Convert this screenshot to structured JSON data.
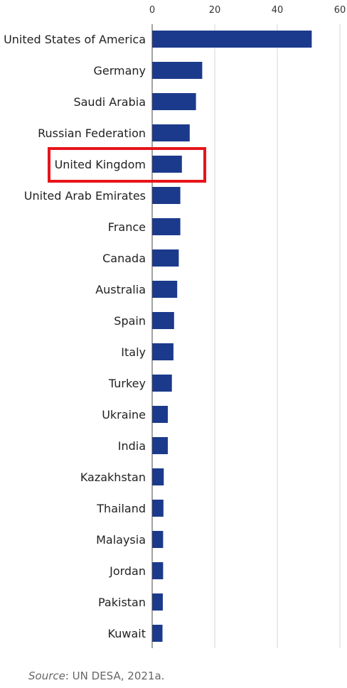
{
  "chart_data": {
    "type": "bar",
    "orientation": "horizontal",
    "categories": [
      "United States of America",
      "Germany",
      "Saudi Arabia",
      "Russian Federation",
      "United Kingdom",
      "United Arab Emirates",
      "France",
      "Canada",
      "Australia",
      "Spain",
      "Italy",
      "Turkey",
      "Ukraine",
      "India",
      "Kazakhstan",
      "Thailand",
      "Malaysia",
      "Jordan",
      "Pakistan",
      "Kuwait"
    ],
    "values": [
      51,
      16,
      14,
      12,
      9.5,
      9,
      9,
      8.5,
      8,
      7,
      6.8,
      6.3,
      5,
      5,
      3.7,
      3.6,
      3.5,
      3.5,
      3.4,
      3.3
    ],
    "xlim": [
      0,
      60
    ],
    "xticks": [
      "0",
      "20",
      "40",
      "60"
    ],
    "xtick_values": [
      0,
      20,
      40,
      60
    ],
    "title": "",
    "xlabel": "",
    "ylabel": "",
    "grid": true,
    "highlighted_category": "United Kingdom",
    "bar_color": "#1b3a8c",
    "highlight_color": "#e8141b"
  },
  "source": {
    "prefix": "Source",
    "text": ": UN DESA, 2021a."
  }
}
